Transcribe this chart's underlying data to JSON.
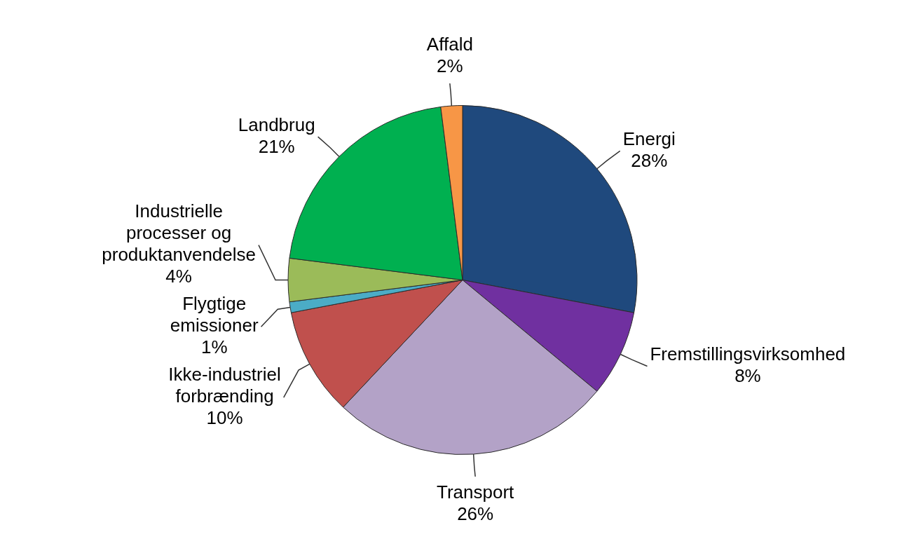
{
  "chart_data": {
    "type": "pie",
    "categories": [
      "Energi",
      "Fremstillingsvirksomhed",
      "Transport",
      "Ikke-industriel forbrænding",
      "Flygtige emissioner",
      "Industrielle processer og produktanvendelse",
      "Landbrug",
      "Affald"
    ],
    "values": [
      28,
      8,
      26,
      10,
      1,
      4,
      21,
      2
    ],
    "colors": [
      "#1f497d",
      "#7030a0",
      "#b3a2c7",
      "#c0504d",
      "#4bacc6",
      "#9bbb59",
      "#00b050",
      "#f79646"
    ],
    "value_labels": [
      "28%",
      "8%",
      "26%",
      "10%",
      "1%",
      "4%",
      "21%",
      "2%"
    ]
  }
}
